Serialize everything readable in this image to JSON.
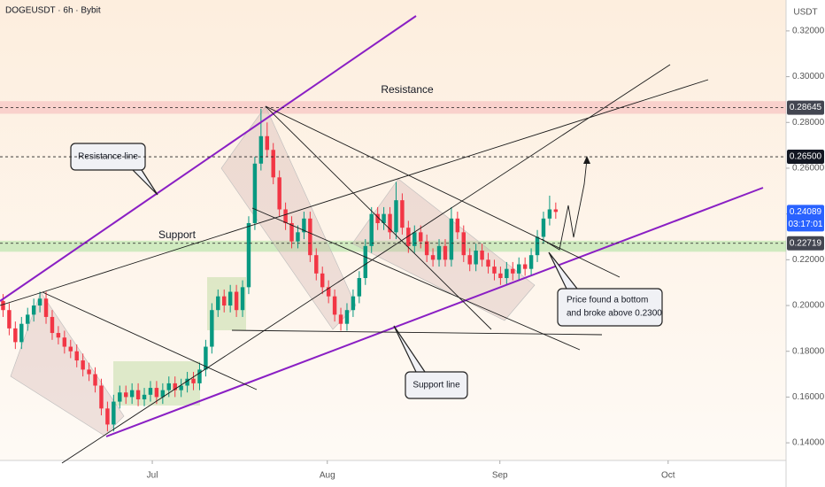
{
  "chart_data": {
    "type": "candlestick",
    "title": "DOGEUSDT · 6h · Bybit",
    "axis_unit": "USDT",
    "up_color": "#089981",
    "down_color": "#f23645",
    "xlim": [
      0,
      128
    ],
    "xticks": [
      {
        "value": 24.8,
        "label": "Jul"
      },
      {
        "value": 53.3,
        "label": "Aug"
      },
      {
        "value": 81.4,
        "label": "Sep"
      },
      {
        "value": 108.8,
        "label": "Oct"
      }
    ],
    "ylim": [
      0.1323,
      0.3335
    ],
    "yticks": [
      {
        "value": 0.14,
        "label": "0.14000"
      },
      {
        "value": 0.16,
        "label": "0.16000"
      },
      {
        "value": 0.18,
        "label": "0.18000"
      },
      {
        "value": 0.2,
        "label": "0.20000"
      },
      {
        "value": 0.22,
        "label": "0.22000"
      },
      {
        "value": 0.24,
        "label": "0.24000"
      },
      {
        "value": 0.26,
        "label": "0.26000"
      },
      {
        "value": 0.28,
        "label": "0.28000"
      },
      {
        "value": 0.3,
        "label": "0.30000"
      },
      {
        "value": 0.32,
        "label": "0.32000"
      }
    ],
    "open": [
      0.202,
      0.198,
      0.19,
      0.184,
      0.192,
      0.196,
      0.2,
      0.203,
      0.195,
      0.188,
      0.186,
      0.182,
      0.18,
      0.176,
      0.172,
      0.17,
      0.165,
      0.155,
      0.148,
      0.158,
      0.162,
      0.16,
      0.163,
      0.159,
      0.161,
      0.164,
      0.16,
      0.163,
      0.166,
      0.163,
      0.165,
      0.168,
      0.166,
      0.172,
      0.182,
      0.198,
      0.204,
      0.2,
      0.206,
      0.198,
      0.208,
      0.236,
      0.262,
      0.274,
      0.268,
      0.256,
      0.242,
      0.236,
      0.228,
      0.232,
      0.238,
      0.222,
      0.214,
      0.208,
      0.204,
      0.196,
      0.192,
      0.198,
      0.204,
      0.212,
      0.226,
      0.24,
      0.236,
      0.24,
      0.232,
      0.246,
      0.234,
      0.226,
      0.232,
      0.228,
      0.222,
      0.22,
      0.226,
      0.22,
      0.238,
      0.232,
      0.222,
      0.218,
      0.224,
      0.22,
      0.217,
      0.214,
      0.212,
      0.216,
      0.214,
      0.218,
      0.216,
      0.222,
      0.23,
      0.238,
      0.242
    ],
    "high": [
      0.205,
      0.201,
      0.193,
      0.195,
      0.199,
      0.203,
      0.206,
      0.206,
      0.198,
      0.191,
      0.189,
      0.185,
      0.183,
      0.179,
      0.175,
      0.173,
      0.168,
      0.158,
      0.161,
      0.165,
      0.165,
      0.166,
      0.166,
      0.164,
      0.167,
      0.167,
      0.166,
      0.169,
      0.169,
      0.168,
      0.171,
      0.171,
      0.175,
      0.185,
      0.201,
      0.207,
      0.207,
      0.209,
      0.209,
      0.211,
      0.239,
      0.265,
      0.286,
      0.28,
      0.271,
      0.259,
      0.245,
      0.239,
      0.235,
      0.241,
      0.241,
      0.225,
      0.217,
      0.211,
      0.207,
      0.199,
      0.201,
      0.207,
      0.215,
      0.229,
      0.243,
      0.243,
      0.243,
      0.243,
      0.254,
      0.249,
      0.237,
      0.235,
      0.235,
      0.231,
      0.225,
      0.229,
      0.229,
      0.243,
      0.241,
      0.235,
      0.225,
      0.227,
      0.227,
      0.223,
      0.22,
      0.217,
      0.219,
      0.219,
      0.221,
      0.221,
      0.225,
      0.233,
      0.241,
      0.248,
      0.245
    ],
    "low": [
      0.195,
      0.187,
      0.181,
      0.181,
      0.189,
      0.193,
      0.197,
      0.192,
      0.185,
      0.183,
      0.179,
      0.177,
      0.173,
      0.169,
      0.167,
      0.162,
      0.152,
      0.145,
      0.145,
      0.155,
      0.157,
      0.157,
      0.156,
      0.156,
      0.158,
      0.157,
      0.157,
      0.16,
      0.16,
      0.16,
      0.162,
      0.163,
      0.163,
      0.169,
      0.179,
      0.195,
      0.197,
      0.197,
      0.195,
      0.195,
      0.205,
      0.233,
      0.259,
      0.265,
      0.253,
      0.239,
      0.233,
      0.225,
      0.225,
      0.229,
      0.219,
      0.211,
      0.205,
      0.201,
      0.193,
      0.189,
      0.189,
      0.195,
      0.201,
      0.209,
      0.223,
      0.233,
      0.233,
      0.229,
      0.229,
      0.231,
      0.223,
      0.223,
      0.225,
      0.219,
      0.217,
      0.217,
      0.217,
      0.217,
      0.229,
      0.219,
      0.215,
      0.215,
      0.217,
      0.214,
      0.211,
      0.209,
      0.209,
      0.211,
      0.211,
      0.213,
      0.213,
      0.219,
      0.227,
      0.235,
      0.2379
    ],
    "close": [
      0.198,
      0.19,
      0.184,
      0.192,
      0.196,
      0.2,
      0.203,
      0.195,
      0.188,
      0.186,
      0.182,
      0.18,
      0.176,
      0.172,
      0.17,
      0.165,
      0.155,
      0.148,
      0.158,
      0.162,
      0.16,
      0.163,
      0.159,
      0.161,
      0.164,
      0.16,
      0.163,
      0.166,
      0.163,
      0.165,
      0.168,
      0.166,
      0.172,
      0.182,
      0.198,
      0.204,
      0.2,
      0.206,
      0.198,
      0.208,
      0.236,
      0.262,
      0.274,
      0.268,
      0.256,
      0.242,
      0.236,
      0.228,
      0.232,
      0.238,
      0.222,
      0.214,
      0.208,
      0.204,
      0.196,
      0.192,
      0.198,
      0.204,
      0.212,
      0.226,
      0.24,
      0.236,
      0.24,
      0.232,
      0.246,
      0.234,
      0.226,
      0.232,
      0.228,
      0.222,
      0.22,
      0.226,
      0.22,
      0.238,
      0.232,
      0.222,
      0.218,
      0.224,
      0.22,
      0.217,
      0.214,
      0.212,
      0.216,
      0.214,
      0.218,
      0.216,
      0.222,
      0.23,
      0.238,
      0.242,
      0.2409
    ],
    "resistance_zone": [
      0.2838,
      0.2893
    ],
    "support_zone": [
      0.2235,
      0.2283
    ],
    "price_labels": [
      {
        "value": 0.28645,
        "label": "0.28645",
        "color": "#434651",
        "dashed": true
      },
      {
        "value": 0.265,
        "label": "0.26500",
        "color": "#131722",
        "dashed": true
      },
      {
        "value": 0.24089,
        "label": "0.24089",
        "color": "#2962ff",
        "dashed": false
      },
      {
        "value": 0.22719,
        "label": "0.22719",
        "color": "#434651",
        "dashed": true
      }
    ],
    "countdown": "03:17:01",
    "annotations": {
      "resistance": "Resistance",
      "support": "Support",
      "resistance_line": "Resistance line",
      "support_line": "Support line",
      "note_line1": "Price found a bottom",
      "note_line2": "and broke above 0.2300"
    }
  }
}
